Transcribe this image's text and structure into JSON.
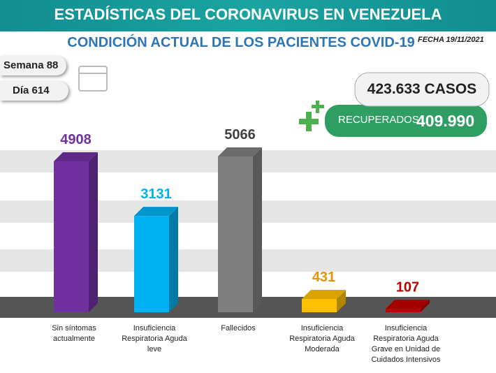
{
  "header": "ESTADÍSTICAS DEL CORONAVIRUS EN VENEZUELA",
  "date": "FECHA 19/11/2021",
  "week": "Semana 88",
  "day": "Día 614",
  "cases": "423.633 CASOS",
  "recovered_label": "RECUPERADOS",
  "recovered": "409.990",
  "chart_data": {
    "type": "bar",
    "title": "CONDICIÓN ACTUAL DE LOS PACIENTES COVID-19",
    "categories": [
      "Sin síntomas actualmente",
      "Insuficiencia Respiratoria Aguda leve",
      "Fallecidos",
      "Insuficiencia Respiratoria Aguda Moderada",
      "Insuficiencia Respiratoria Aguda Grave en Unidad de Cuidados Intensivos"
    ],
    "values": [
      4908,
      3131,
      5066,
      431,
      107
    ],
    "colors": [
      "#7030a0",
      "#00b0f0",
      "#7f7f7f",
      "#ffc000",
      "#c00000"
    ],
    "label_colors": [
      "#7030a0",
      "#00b0f0",
      "#404040",
      "#e69500",
      "#c00000"
    ]
  }
}
